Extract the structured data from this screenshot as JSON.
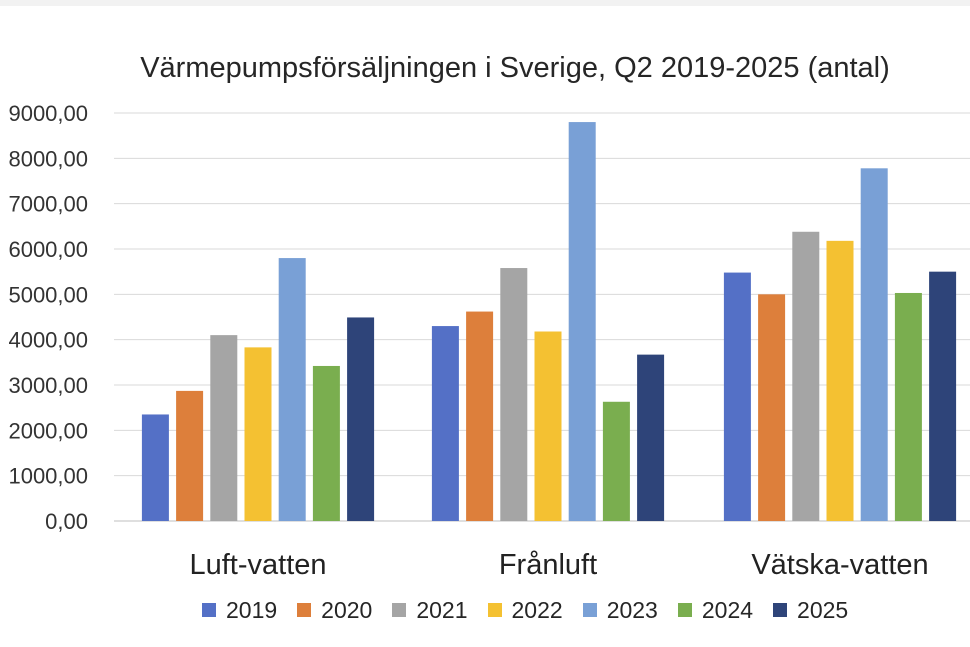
{
  "chart_data": {
    "type": "bar",
    "title": "Värmepumpsförsäljningen i Sverige, Q2 2019-2025 (antal)",
    "xlabel": "",
    "ylabel": "",
    "categories": [
      "Luft-vatten",
      "Frånluft",
      "Vätska-vatten"
    ],
    "ylim": [
      0,
      9000
    ],
    "yticks": [
      "0,00",
      "1000,00",
      "2000,00",
      "3000,00",
      "4000,00",
      "5000,00",
      "6000,00",
      "7000,00",
      "8000,00",
      "9000,00"
    ],
    "grid": true,
    "legend_position": "bottom",
    "series": [
      {
        "name": "2019",
        "color": "#5470C6",
        "values": [
          2350,
          4300,
          5480
        ]
      },
      {
        "name": "2020",
        "color": "#DD7F3B",
        "values": [
          2870,
          4620,
          5000
        ]
      },
      {
        "name": "2021",
        "color": "#A5A5A5",
        "values": [
          4100,
          5580,
          6380
        ]
      },
      {
        "name": "2022",
        "color": "#F4C132",
        "values": [
          3830,
          4180,
          6180
        ]
      },
      {
        "name": "2023",
        "color": "#79A0D6",
        "values": [
          5800,
          8800,
          7780
        ]
      },
      {
        "name": "2024",
        "color": "#7AAE4F",
        "values": [
          3420,
          2630,
          5030
        ]
      },
      {
        "name": "2025",
        "color": "#2E4479",
        "values": [
          4490,
          3670,
          5500
        ]
      }
    ]
  }
}
